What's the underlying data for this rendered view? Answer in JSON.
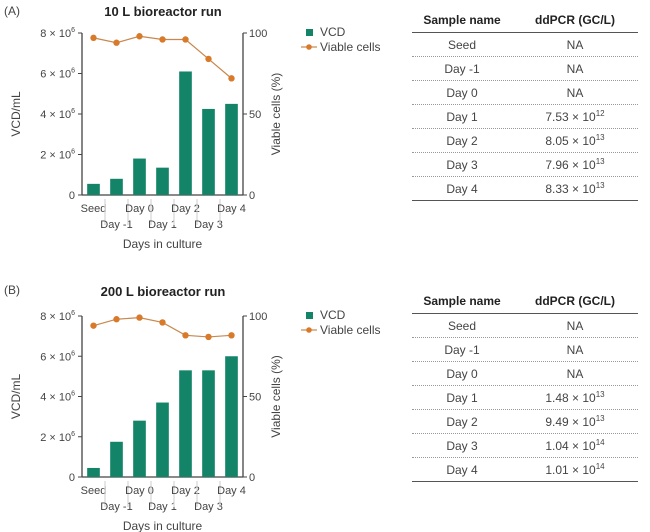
{
  "panels": [
    {
      "label": "(A)",
      "table": {
        "headers": [
          "Sample name",
          "ddPCR (GC/L)"
        ],
        "rows": [
          {
            "name": "Seed",
            "mant": "NA",
            "exp": ""
          },
          {
            "name": "Day -1",
            "mant": "NA",
            "exp": ""
          },
          {
            "name": "Day 0",
            "mant": "NA",
            "exp": ""
          },
          {
            "name": "Day 1",
            "mant": "7.53 × 10",
            "exp": "12"
          },
          {
            "name": "Day 2",
            "mant": "8.05 × 10",
            "exp": "13"
          },
          {
            "name": "Day 3",
            "mant": "7.96 × 10",
            "exp": "13"
          },
          {
            "name": "Day 4",
            "mant": "8.33 × 10",
            "exp": "13"
          }
        ]
      }
    },
    {
      "label": "(B)",
      "table": {
        "headers": [
          "Sample name",
          "ddPCR (GC/L)"
        ],
        "rows": [
          {
            "name": "Seed",
            "mant": "NA",
            "exp": ""
          },
          {
            "name": "Day -1",
            "mant": "NA",
            "exp": ""
          },
          {
            "name": "Day 0",
            "mant": "NA",
            "exp": ""
          },
          {
            "name": "Day 1",
            "mant": "1.48 × 10",
            "exp": "13"
          },
          {
            "name": "Day 2",
            "mant": "9.49 × 10",
            "exp": "13"
          },
          {
            "name": "Day 3",
            "mant": "1.04 × 10",
            "exp": "14"
          },
          {
            "name": "Day 4",
            "mant": "1.01 × 10",
            "exp": "14"
          }
        ]
      }
    }
  ],
  "chart_data": [
    {
      "type": "bar",
      "title": "10 L bioreactor run",
      "categories": [
        "Seed",
        "Day -1",
        "Day 0",
        "Day 1",
        "Day 2",
        "Day 3",
        "Day 4"
      ],
      "series": [
        {
          "name": "VCD",
          "type": "bar",
          "axis": "left",
          "color": "#138468",
          "values": [
            550000,
            800000,
            1800000,
            1350000,
            6100000,
            4250000,
            4500000
          ]
        },
        {
          "name": "Viable cells",
          "type": "line",
          "axis": "right",
          "color": "#d97a2b",
          "values": [
            97,
            94,
            98,
            96,
            96,
            84,
            72
          ]
        }
      ],
      "xlabel": "Days in culture",
      "ylabel": "VCD/mL",
      "y2label": "Viable cells (%)",
      "ylim": [
        0,
        8000000
      ],
      "y2lim": [
        0,
        100
      ],
      "yticks": [
        {
          "m": "0",
          "e": ""
        },
        {
          "m": "2 × 10",
          "e": "6"
        },
        {
          "m": "4 × 10",
          "e": "6"
        },
        {
          "m": "6 × 10",
          "e": "6"
        },
        {
          "m": "8 × 10",
          "e": "6"
        }
      ],
      "y2ticks": [
        "0",
        "50",
        "100"
      ],
      "legend": [
        "VCD",
        "Viable cells"
      ],
      "legend_position": "right"
    },
    {
      "type": "bar",
      "title": "200 L bioreactor run",
      "categories": [
        "Seed",
        "Day -1",
        "Day 0",
        "Day 1",
        "Day 2",
        "Day 3",
        "Day 4"
      ],
      "series": [
        {
          "name": "VCD",
          "type": "bar",
          "axis": "left",
          "color": "#138468",
          "values": [
            450000,
            1750000,
            2800000,
            3700000,
            5300000,
            5300000,
            6000000
          ]
        },
        {
          "name": "Viable cells",
          "type": "line",
          "axis": "right",
          "color": "#d97a2b",
          "values": [
            94,
            98,
            99,
            96,
            88,
            87,
            88
          ]
        }
      ],
      "xlabel": "Days in culture",
      "ylabel": "VCD/mL",
      "y2label": "Viable cells (%)",
      "ylim": [
        0,
        8000000
      ],
      "y2lim": [
        0,
        100
      ],
      "yticks": [
        {
          "m": "0",
          "e": ""
        },
        {
          "m": "2 × 10",
          "e": "6"
        },
        {
          "m": "4 × 10",
          "e": "6"
        },
        {
          "m": "6 × 10",
          "e": "6"
        },
        {
          "m": "8 × 10",
          "e": "6"
        }
      ],
      "y2ticks": [
        "0",
        "50",
        "100"
      ],
      "legend": [
        "VCD",
        "Viable cells"
      ],
      "legend_position": "right"
    }
  ]
}
